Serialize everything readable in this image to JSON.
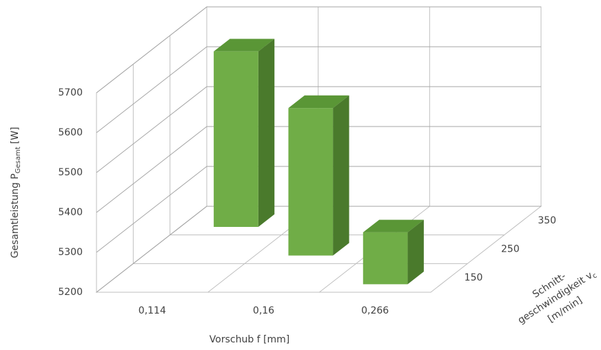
{
  "chart_data": {
    "type": "bar3d",
    "categories": [
      "0,114",
      "0,16",
      "0,266"
    ],
    "series": [
      {
        "name": "150",
        "color": "#70ad47",
        "values": [
          null,
          null,
          5330
        ]
      },
      {
        "name": "250",
        "color": "#70ad47",
        "values": [
          null,
          5570,
          null
        ]
      },
      {
        "name": "350",
        "color": "#70ad47",
        "values": [
          5640,
          null,
          null
        ]
      }
    ],
    "ylim": [
      5200,
      5700
    ],
    "yticks": [
      5200,
      5300,
      5400,
      5500,
      5600,
      5700
    ],
    "grid": true,
    "xlabel": "Vorschub f [mm]",
    "ylabel": {
      "main": "Gesamtleistung P",
      "sub": "Gesamt",
      "unit": "[W]"
    },
    "zlabel": {
      "line1": "Schnitt-",
      "line2": "geschwindigkeit v",
      "sub": "c",
      "line3": "[m/min]"
    }
  }
}
